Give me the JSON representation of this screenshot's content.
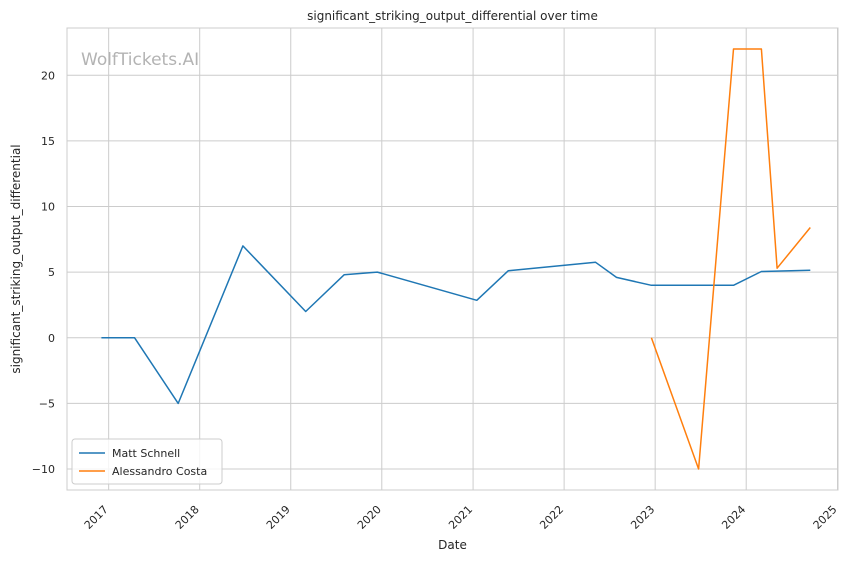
{
  "chart_data": {
    "type": "line",
    "title": "significant_striking_output_differential over time",
    "xlabel": "Date",
    "ylabel": "significant_striking_output_differential",
    "watermark": "WolfTickets.AI",
    "x_ticks": [
      "2017",
      "2018",
      "2019",
      "2020",
      "2021",
      "2022",
      "2023",
      "2024",
      "2025"
    ],
    "y_ticks": [
      -10,
      -5,
      0,
      5,
      10,
      15,
      20
    ],
    "xlim": [
      "2016-07-18",
      "2025-01-03"
    ],
    "ylim": [
      -11.6,
      23.6
    ],
    "grid": true,
    "legend_position": "lower-left",
    "series": [
      {
        "name": "Matt Schnell",
        "color": "#1f77b4",
        "points": [
          [
            "2016-12-03",
            0
          ],
          [
            "2017-04-15",
            0
          ],
          [
            "2017-10-07",
            -5
          ],
          [
            "2018-06-23",
            7
          ],
          [
            "2019-03-02",
            2
          ],
          [
            "2019-08-03",
            4.8
          ],
          [
            "2019-12-14",
            5
          ],
          [
            "2021-01-16",
            2.85
          ],
          [
            "2021-05-22",
            5.1
          ],
          [
            "2022-05-07",
            5.75
          ],
          [
            "2022-07-30",
            4.6
          ],
          [
            "2022-12-17",
            4
          ],
          [
            "2023-11-11",
            4
          ],
          [
            "2024-03-02",
            5.05
          ],
          [
            "2024-09-14",
            5.15
          ]
        ]
      },
      {
        "name": "Alessandro Costa",
        "color": "#ff7f0e",
        "points": [
          [
            "2022-12-17",
            0
          ],
          [
            "2023-06-24",
            -10
          ],
          [
            "2023-11-11",
            22
          ],
          [
            "2024-03-02",
            22
          ],
          [
            "2024-05-04",
            5.3
          ],
          [
            "2024-09-14",
            8.4
          ]
        ]
      }
    ]
  }
}
